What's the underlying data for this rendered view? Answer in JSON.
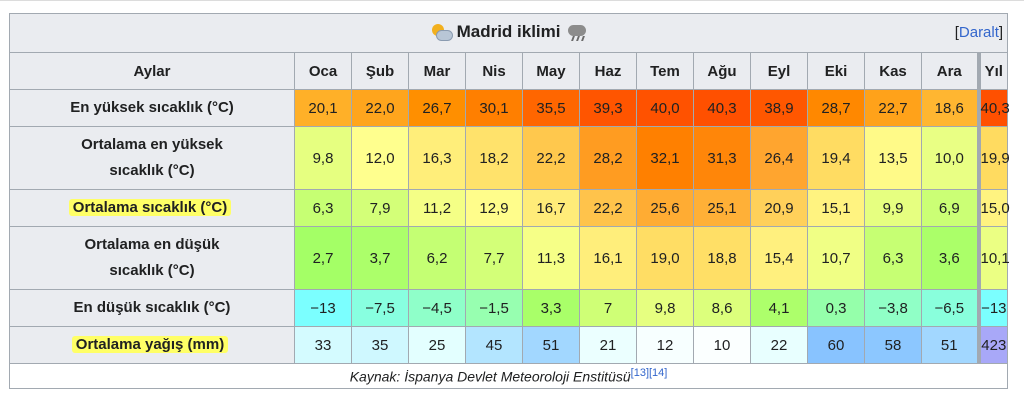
{
  "title": "Madrid iklimi",
  "toggle": {
    "label": "Daralt"
  },
  "header": {
    "row_label": "Aylar",
    "months": [
      "Oca",
      "Şub",
      "Mar",
      "Nis",
      "May",
      "Haz",
      "Tem",
      "Ağu",
      "Eyl",
      "Eki",
      "Kas",
      "Ara"
    ],
    "year": "Yıl"
  },
  "rows": [
    {
      "label_line1": "En yüksek sıcaklık (°C)",
      "label_line2": "",
      "highlighted": false,
      "values": [
        "20,1",
        "22,0",
        "26,7",
        "30,1",
        "35,5",
        "39,3",
        "40,0",
        "40,3",
        "38,9",
        "28,7",
        "22,7",
        "18,6"
      ],
      "year": "40,3",
      "colors": [
        "#ffb028",
        "#ffa51d",
        "#ff8f00",
        "#ff7f00",
        "#ff6600",
        "#ff5500",
        "#ff5200",
        "#ff5000",
        "#ff5700",
        "#ff8800",
        "#ffa21a",
        "#ffb631"
      ],
      "year_color": "#ff5000"
    },
    {
      "label_line1": "Ortalama en yüksek",
      "label_line2": "sıcaklık (°C)",
      "highlighted": false,
      "values": [
        "9,8",
        "12,0",
        "16,3",
        "18,2",
        "22,2",
        "28,2",
        "32,1",
        "31,3",
        "26,4",
        "19,4",
        "13,5",
        "10,0"
      ],
      "year": "19,9",
      "colors": [
        "#e6ff80",
        "#ffff8e",
        "#ffee7a",
        "#ffe26b",
        "#ffc84d",
        "#ff9c21",
        "#ff8000",
        "#ff8609",
        "#ffa52f",
        "#ffdc62",
        "#fffa88",
        "#e9ff84"
      ],
      "year_color": "#ffdb60"
    },
    {
      "label_line1": "Ortalama sıcaklık (°C)",
      "label_line2": "",
      "highlighted": true,
      "values": [
        "6,3",
        "7,9",
        "11,2",
        "12,9",
        "16,7",
        "22,2",
        "25,6",
        "25,1",
        "20,9",
        "15,1",
        "9,9",
        "6,9"
      ],
      "year": "15,0",
      "colors": [
        "#c6ff73",
        "#d3ff78",
        "#f4ff86",
        "#fffd8b",
        "#ffec79",
        "#ffc34b",
        "#ffac33",
        "#ffb037",
        "#ffd05a",
        "#fff380",
        "#e6ff80",
        "#cbff75"
      ],
      "year_color": "#fff380"
    },
    {
      "label_line1": "Ortalama en düşük",
      "label_line2": "sıcaklık (°C)",
      "highlighted": false,
      "values": [
        "2,7",
        "3,7",
        "6,2",
        "7,7",
        "11,3",
        "16,1",
        "19,0",
        "18,8",
        "15,4",
        "10,7",
        "6,3",
        "3,6"
      ],
      "year": "10,1",
      "colors": [
        "#a4ff66",
        "#acff6a",
        "#c4ff73",
        "#d3ff78",
        "#f6ff87",
        "#ffee7b",
        "#ffdd64",
        "#ffdf66",
        "#fff07e",
        "#f0ff85",
        "#c6ff73",
        "#abff69"
      ],
      "year_color": "#ebff83"
    },
    {
      "label_line1": "En düşük sıcaklık (°C)",
      "label_line2": "",
      "highlighted": false,
      "values": [
        "−13",
        "−7,5",
        "−4,5",
        "−1,5",
        "3,3",
        "7",
        "9,8",
        "8,6",
        "4,1",
        "0,3",
        "−3,8",
        "−6,5"
      ],
      "year": "−13",
      "colors": [
        "#7bffff",
        "#88ffe0",
        "#8fffc9",
        "#97ffb0",
        "#a9ff69",
        "#cfff76",
        "#e6ff80",
        "#dcff7c",
        "#adff6b",
        "#95ffaa",
        "#90ffc6",
        "#89ffdc"
      ],
      "year_color": "#7bffff"
    },
    {
      "label_line1": "Ortalama yağış (mm)",
      "label_line2": "",
      "highlighted": true,
      "values": [
        "33",
        "35",
        "25",
        "45",
        "51",
        "21",
        "12",
        "10",
        "22",
        "60",
        "58",
        "51"
      ],
      "year": "423",
      "colors": [
        "#d4fbff",
        "#cff8ff",
        "#e3ffff",
        "#b3e5ff",
        "#a2d7ff",
        "#ebffff",
        "#f7ffff",
        "#fbffff",
        "#e8ffff",
        "#88c3ff",
        "#8cc7ff",
        "#a2d7ff"
      ],
      "year_color": "#a8a8f8"
    }
  ],
  "source": {
    "text": "Kaynak: İspanya Devlet Meteoroloji Enstitüsü",
    "refs": "[13][14]"
  }
}
